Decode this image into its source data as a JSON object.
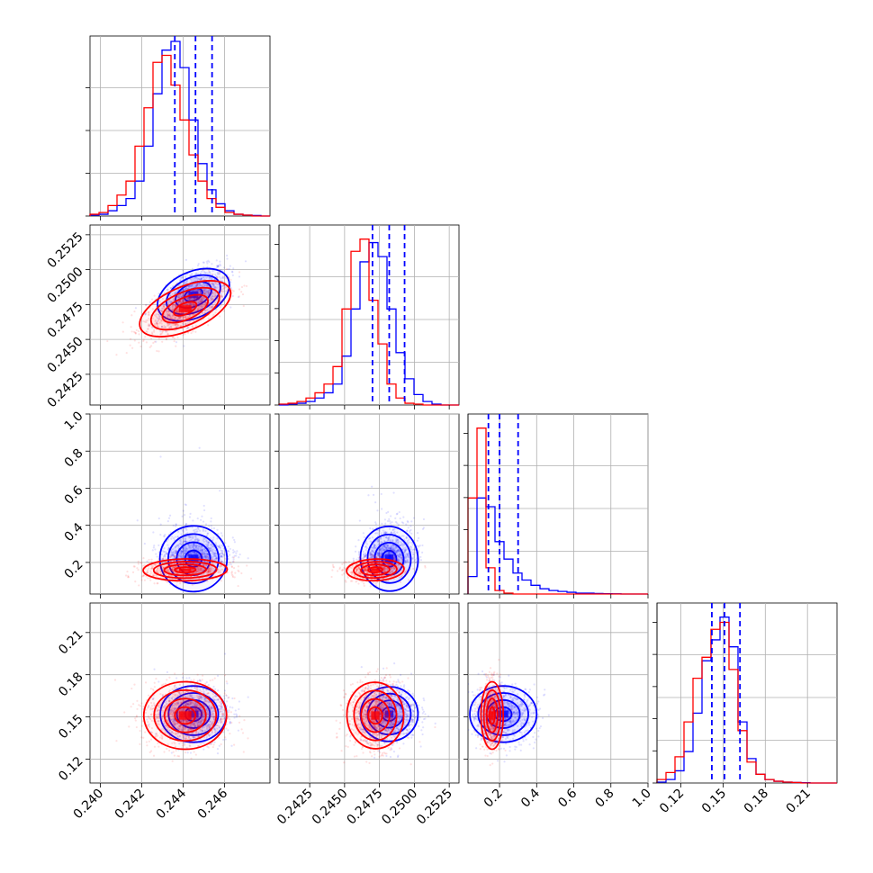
{
  "chart_data": {
    "type": "corner",
    "n_params": 4,
    "series": [
      {
        "name": "",
        "color": "#0000ff"
      },
      {
        "name": "",
        "color": "#ff0000"
      }
    ],
    "params": [
      {
        "range": [
          0.2395,
          0.2482
        ],
        "ticks": [
          0.24,
          0.242,
          0.244,
          0.246
        ],
        "tick_labels": [
          "0.240",
          "0.242",
          "0.244",
          "0.246"
        ],
        "quantiles_blue": [
          0.2436,
          0.2446,
          0.2454
        ],
        "blue_mean": 0.2445,
        "blue_sd": 0.0008,
        "red_mean": 0.2441,
        "red_sd": 0.001
      },
      {
        "range": [
          0.2403,
          0.2532
        ],
        "ticks": [
          0.2425,
          0.245,
          0.2475,
          0.25,
          0.2525
        ],
        "tick_labels": [
          "0.2425",
          "0.2450",
          "0.2475",
          "0.2500",
          "0.2525"
        ],
        "quantiles_blue": [
          0.247,
          0.2482,
          0.2493
        ],
        "blue_mean": 0.2482,
        "blue_sd": 0.001,
        "red_mean": 0.2472,
        "red_sd": 0.001
      },
      {
        "range": [
          0.03,
          1.0
        ],
        "ticks": [
          0.2,
          0.4,
          0.6,
          0.8,
          1.0
        ],
        "tick_labels": [
          "0.2",
          "0.4",
          "0.6",
          "0.8",
          "1.0"
        ],
        "quantiles_blue": [
          0.14,
          0.2,
          0.3
        ],
        "blue_mean": 0.22,
        "blue_sd": 0.09,
        "red_mean": 0.16,
        "red_sd": 0.03
      },
      {
        "range": [
          0.103,
          0.231
        ],
        "ticks": [
          0.12,
          0.15,
          0.18,
          0.21
        ],
        "tick_labels": [
          "0.12",
          "0.15",
          "0.18",
          "0.21"
        ],
        "quantiles_blue": [
          0.142,
          0.151,
          0.162
        ],
        "blue_mean": 0.152,
        "blue_sd": 0.01,
        "red_mean": 0.151,
        "red_sd": 0.012
      }
    ],
    "histograms": [
      {
        "bins": [
          0.2395,
          0.2482,
          20
        ],
        "blue": [
          0.005,
          0.01,
          0.03,
          0.06,
          0.1,
          0.2,
          0.4,
          0.7,
          0.95,
          1.0,
          0.85,
          0.55,
          0.3,
          0.15,
          0.07,
          0.03,
          0.01,
          0.005,
          0.003,
          0
        ],
        "red": [
          0.01,
          0.02,
          0.06,
          0.12,
          0.2,
          0.4,
          0.62,
          0.88,
          0.92,
          0.75,
          0.55,
          0.35,
          0.2,
          0.1,
          0.05,
          0.02,
          0.01,
          0.005,
          0,
          0
        ]
      },
      {
        "bins": [
          0.2403,
          0.2532,
          20
        ],
        "blue": [
          0,
          0.005,
          0.01,
          0.02,
          0.04,
          0.07,
          0.12,
          0.28,
          0.55,
          0.82,
          0.93,
          0.85,
          0.55,
          0.3,
          0.15,
          0.06,
          0.02,
          0.005,
          0,
          0
        ],
        "red": [
          0.005,
          0.01,
          0.02,
          0.04,
          0.07,
          0.12,
          0.22,
          0.55,
          0.88,
          0.95,
          0.6,
          0.35,
          0.12,
          0.04,
          0.01,
          0.005,
          0,
          0,
          0,
          0
        ]
      },
      {
        "bins": [
          0.03,
          1.0,
          20
        ],
        "blue": [
          0.1,
          0.55,
          0.5,
          0.3,
          0.2,
          0.12,
          0.08,
          0.05,
          0.03,
          0.02,
          0.015,
          0.01,
          0.005,
          0.005,
          0.003,
          0.002,
          0.001,
          0,
          0,
          0
        ],
        "red": [
          0.55,
          0.95,
          0.15,
          0.02,
          0.005,
          0,
          0,
          0,
          0,
          0,
          0,
          0,
          0,
          0,
          0,
          0,
          0,
          0,
          0,
          0
        ]
      },
      {
        "bins": [
          0.103,
          0.231,
          20
        ],
        "blue": [
          0.005,
          0.02,
          0.07,
          0.18,
          0.4,
          0.7,
          0.82,
          0.95,
          0.78,
          0.35,
          0.14,
          0.05,
          0.02,
          0.01,
          0.005,
          0.003,
          0.002,
          0,
          0,
          0
        ],
        "red": [
          0.02,
          0.06,
          0.15,
          0.35,
          0.6,
          0.72,
          0.88,
          0.92,
          0.65,
          0.3,
          0.12,
          0.05,
          0.02,
          0.01,
          0.005,
          0.003,
          0,
          0,
          0,
          0
        ]
      }
    ],
    "pairs": [
      {
        "row": 1,
        "col": 0,
        "blue_corr": 0.55,
        "red_corr": 0.65
      },
      {
        "row": 2,
        "col": 0,
        "blue_corr": 0.05,
        "red_corr": 0.05
      },
      {
        "row": 2,
        "col": 1,
        "blue_corr": 0.1,
        "red_corr": 0.1
      },
      {
        "row": 3,
        "col": 0,
        "blue_corr": 0.0,
        "red_corr": 0.0
      },
      {
        "row": 3,
        "col": 1,
        "blue_corr": 0.1,
        "red_corr": 0.05
      },
      {
        "row": 3,
        "col": 2,
        "blue_corr": 0.0,
        "red_corr": 0.0
      }
    ],
    "contour_levels_sigma": [
      0.5,
      1.0,
      1.5,
      2.0
    ],
    "grid": true
  }
}
